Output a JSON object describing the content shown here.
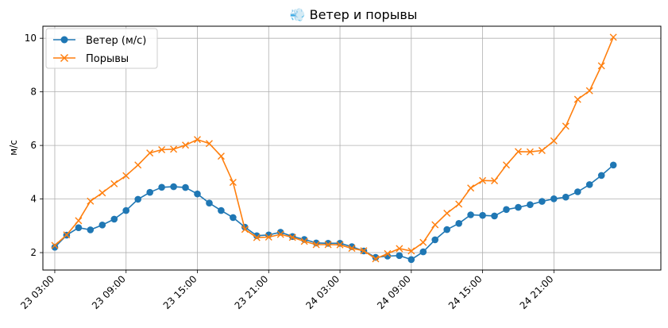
{
  "chart_data": {
    "type": "line",
    "title": "💨 Ветер и порывы",
    "xlabel": "",
    "ylabel": "м/с",
    "xlim": [
      "23 02:00",
      "25 06:00"
    ],
    "ylim": [
      1.35,
      10.45
    ],
    "x_ticks": [
      "23 03:00",
      "23 09:00",
      "23 15:00",
      "23 21:00",
      "24 03:00",
      "24 09:00",
      "24 15:00",
      "24 21:00"
    ],
    "y_ticks": [
      2,
      4,
      6,
      8,
      10
    ],
    "grid": true,
    "legend_position": "top-left",
    "x": [
      "23 03:00",
      "23 04:00",
      "23 05:00",
      "23 06:00",
      "23 07:00",
      "23 08:00",
      "23 09:00",
      "23 10:00",
      "23 11:00",
      "23 12:00",
      "23 13:00",
      "23 14:00",
      "23 15:00",
      "23 16:00",
      "23 17:00",
      "23 18:00",
      "23 19:00",
      "23 20:00",
      "23 21:00",
      "23 22:00",
      "23 23:00",
      "24 00:00",
      "24 01:00",
      "24 02:00",
      "24 03:00",
      "24 04:00",
      "24 05:00",
      "24 06:00",
      "24 07:00",
      "24 08:00",
      "24 09:00",
      "24 10:00",
      "24 11:00",
      "24 12:00",
      "24 13:00",
      "24 14:00",
      "24 15:00",
      "24 16:00",
      "24 17:00",
      "24 18:00",
      "24 19:00",
      "24 20:00",
      "24 21:00",
      "24 22:00",
      "24 23:00",
      "25 00:00",
      "25 01:00",
      "25 02:00"
    ],
    "series": [
      {
        "name": "Ветер (м/с)",
        "color": "#1f77b4",
        "marker": "circle",
        "values": [
          2.2,
          2.65,
          2.93,
          2.85,
          3.03,
          3.25,
          3.57,
          3.99,
          4.25,
          4.44,
          4.46,
          4.43,
          4.19,
          3.85,
          3.57,
          3.31,
          2.95,
          2.63,
          2.66,
          2.76,
          2.6,
          2.49,
          2.36,
          2.35,
          2.35,
          2.22,
          2.06,
          1.82,
          1.87,
          1.89,
          1.74,
          2.03,
          2.48,
          2.86,
          3.09,
          3.41,
          3.39,
          3.37,
          3.61,
          3.69,
          3.79,
          3.91,
          4.01,
          4.07,
          4.27,
          4.54,
          4.88,
          5.27
        ]
      },
      {
        "name": "Порывы",
        "color": "#ff7f0e",
        "marker": "x",
        "values": [
          2.27,
          2.66,
          3.19,
          3.92,
          4.23,
          4.57,
          4.87,
          5.27,
          5.72,
          5.84,
          5.86,
          6.01,
          6.22,
          6.07,
          5.6,
          4.62,
          2.87,
          2.56,
          2.58,
          2.68,
          2.57,
          2.42,
          2.3,
          2.3,
          2.29,
          2.16,
          2.07,
          1.77,
          1.96,
          2.15,
          2.06,
          2.38,
          3.04,
          3.47,
          3.81,
          4.41,
          4.69,
          4.68,
          5.27,
          5.77,
          5.76,
          5.81,
          6.17,
          6.72,
          7.72,
          8.04,
          8.97,
          10.04
        ]
      }
    ]
  }
}
